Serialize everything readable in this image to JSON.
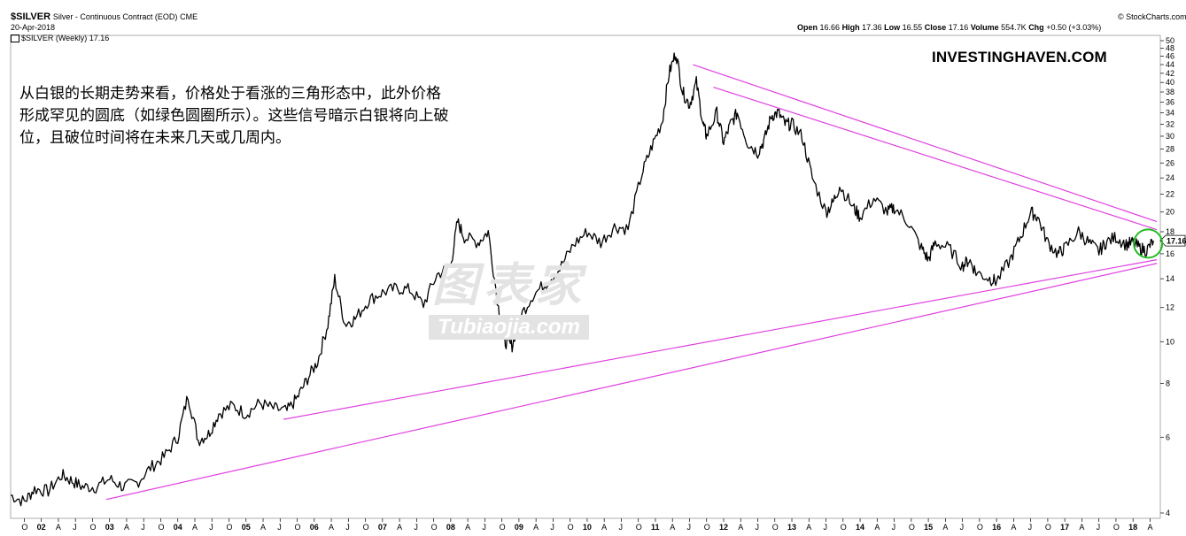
{
  "header": {
    "ticker": "$SILVER",
    "description": "Silver - Continuous Contract (EOD)",
    "exchange": "CME",
    "date": "20-Apr-2018",
    "credit": "© StockCharts.com",
    "legend": "$SILVER (Weekly) 17.16",
    "ohlc": {
      "open_label": "Open",
      "open": "16.66",
      "high_label": "High",
      "high": "17.36",
      "low_label": "Low",
      "low": "16.55",
      "close_label": "Close",
      "close": "17.16",
      "volume_label": "Volume",
      "volume": "554.7K",
      "chg_label": "Chg",
      "chg": "+0.50 (+3.03%)"
    }
  },
  "annotation": "从白银的长期走势来看，价格处于看涨的三角形态中，此外价格形成罕见的圆底（如绿色圆圈所示）。这些信号暗示白银将向上破位，且破位时间将在未来几天或几周内。",
  "brand": "INVESTINGHAVEN.COM",
  "watermark": {
    "main": "图表家",
    "sub": "Tubiaojia.com"
  },
  "colors": {
    "price": "#000000",
    "trendline": "#e040e0",
    "circle": "#22bb22",
    "axis": "#999999"
  },
  "chart_data": {
    "type": "line",
    "title": "$SILVER (Weekly)",
    "yscale": "log",
    "ylim": [
      4,
      50
    ],
    "y_ticks": [
      4,
      6,
      8,
      10,
      12,
      14,
      16,
      18,
      20,
      22,
      24,
      26,
      28,
      30,
      32,
      34,
      36,
      38,
      40,
      42,
      44,
      46,
      48,
      50
    ],
    "x_range": [
      2001.55,
      2018.4
    ],
    "year_labels": [
      "02",
      "03",
      "04",
      "05",
      "06",
      "07",
      "08",
      "09",
      "10",
      "11",
      "12",
      "13",
      "14",
      "15",
      "16",
      "17",
      "18"
    ],
    "year_values": [
      2002,
      2003,
      2004,
      2005,
      2006,
      2007,
      2008,
      2009,
      2010,
      2011,
      2012,
      2013,
      2014,
      2015,
      2016,
      2017,
      2018
    ],
    "month_marks": [
      "J",
      "O",
      "A",
      "J",
      "O"
    ],
    "last_value": "17.16",
    "series": [
      {
        "x": [
          2001.55,
          2001.75,
          2001.9,
          2002.1,
          2002.3,
          2002.45,
          2002.6,
          2002.8,
          2003.0,
          2003.2,
          2003.4,
          2003.6,
          2003.8,
          2004.0,
          2004.15,
          2004.3,
          2004.45,
          2004.6,
          2004.8,
          2005.0,
          2005.2,
          2005.4,
          2005.6,
          2005.75,
          2005.9,
          2006.05,
          2006.2,
          2006.3,
          2006.45,
          2006.6,
          2006.8,
          2007.0,
          2007.2,
          2007.4,
          2007.6,
          2007.8,
          2008.0,
          2008.1,
          2008.2,
          2008.4,
          2008.55,
          2008.7,
          2008.8,
          2008.9,
          2009.0,
          2009.2,
          2009.4,
          2009.6,
          2009.8,
          2010.0,
          2010.2,
          2010.4,
          2010.6,
          2010.8,
          2010.95,
          2011.1,
          2011.2,
          2011.3,
          2011.4,
          2011.5,
          2011.6,
          2011.7,
          2011.75,
          2011.9,
          2012.0,
          2012.1,
          2012.2,
          2012.35,
          2012.5,
          2012.6,
          2012.7,
          2012.8,
          2012.9,
          2013.0,
          2013.15,
          2013.3,
          2013.5,
          2013.6,
          2013.7,
          2013.9,
          2014.0,
          2014.2,
          2014.4,
          2014.5,
          2014.7,
          2014.9,
          2015.0,
          2015.1,
          2015.3,
          2015.5,
          2015.6,
          2015.7,
          2015.9,
          2016.0,
          2016.2,
          2016.35,
          2016.5,
          2016.6,
          2016.75,
          2016.9,
          2017.0,
          2017.2,
          2017.35,
          2017.5,
          2017.6,
          2017.75,
          2017.9,
          2018.0,
          2018.1,
          2018.2,
          2018.3
        ],
        "values": [
          4.4,
          4.25,
          4.55,
          4.5,
          4.9,
          4.75,
          4.6,
          4.6,
          4.8,
          4.6,
          4.7,
          5.1,
          5.4,
          6.0,
          7.5,
          5.9,
          6.1,
          6.8,
          7.1,
          6.8,
          7.2,
          7.0,
          6.9,
          7.4,
          8.2,
          9.0,
          11.0,
          14.0,
          11.0,
          11.3,
          12.5,
          13.0,
          13.3,
          13.2,
          12.2,
          14.3,
          15.0,
          19.0,
          17.5,
          17.0,
          18.0,
          12.0,
          10.0,
          9.8,
          11.3,
          12.8,
          13.7,
          14.8,
          16.8,
          18.0,
          17.0,
          18.5,
          18.3,
          24.5,
          28.5,
          32.5,
          42.0,
          47.0,
          38.0,
          35.5,
          40.0,
          32.0,
          30.0,
          34.0,
          29.0,
          32.0,
          34.0,
          29.0,
          27.5,
          29.5,
          33.5,
          34.0,
          32.0,
          32.0,
          30.0,
          24.0,
          20.0,
          21.0,
          23.0,
          20.5,
          19.5,
          21.5,
          20.0,
          20.5,
          19.0,
          16.5,
          15.5,
          17.0,
          16.5,
          15.0,
          15.5,
          14.5,
          14.0,
          13.8,
          15.5,
          17.5,
          20.0,
          19.5,
          17.0,
          16.0,
          16.5,
          18.0,
          17.0,
          16.2,
          17.0,
          17.5,
          16.8,
          17.0,
          16.5,
          16.3,
          17.16
        ]
      }
    ],
    "trendlines": [
      {
        "x1": 2011.55,
        "y1": 44.0,
        "x2": 2018.35,
        "y2": 19.0
      },
      {
        "x1": 2011.85,
        "y1": 39.0,
        "x2": 2018.35,
        "y2": 18.2
      },
      {
        "x1": 2005.55,
        "y1": 6.6,
        "x2": 2018.35,
        "y2": 15.5
      },
      {
        "x1": 2002.95,
        "y1": 4.3,
        "x2": 2018.35,
        "y2": 15.2
      }
    ],
    "highlight_circle": {
      "x": 2018.22,
      "y": 16.9
    }
  }
}
